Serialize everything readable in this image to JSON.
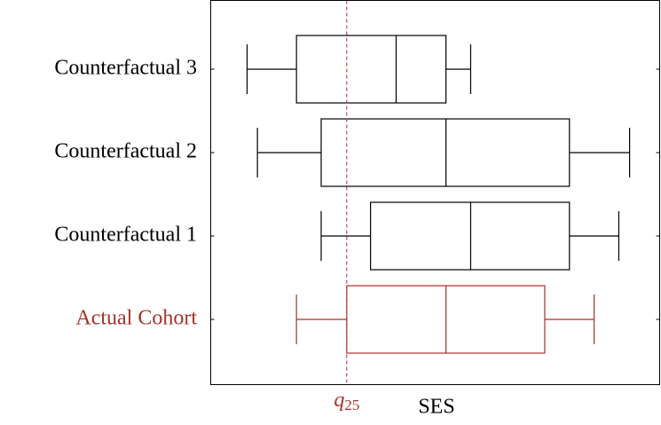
{
  "chart_data": {
    "type": "boxplot",
    "orientation": "horizontal",
    "x_label": "SES",
    "xlim": [
      0,
      100
    ],
    "series": [
      {
        "name": "Actual Cohort",
        "color": "#a5322a",
        "whisker_low": 19.1,
        "q1": 30.3,
        "median": 52.4,
        "q3": 74.4,
        "whisker_high": 85.4
      },
      {
        "name": "Counterfactual 1",
        "color": "#000000",
        "whisker_low": 24.6,
        "q1": 35.6,
        "median": 57.9,
        "q3": 79.9,
        "whisker_high": 90.9
      },
      {
        "name": "Counterfactual 2",
        "color": "#000000",
        "whisker_low": 10.4,
        "q1": 24.6,
        "median": 52.4,
        "q3": 79.9,
        "whisker_high": 93.3
      },
      {
        "name": "Counterfactual 3",
        "color": "#000000",
        "whisker_low": 8.1,
        "q1": 19.1,
        "median": 41.3,
        "q3": 52.4,
        "whisker_high": 57.9
      }
    ],
    "reference_line": {
      "value": 30.3,
      "label": "q",
      "subscript": "25",
      "color": "#a5322a",
      "dashed": true
    }
  }
}
